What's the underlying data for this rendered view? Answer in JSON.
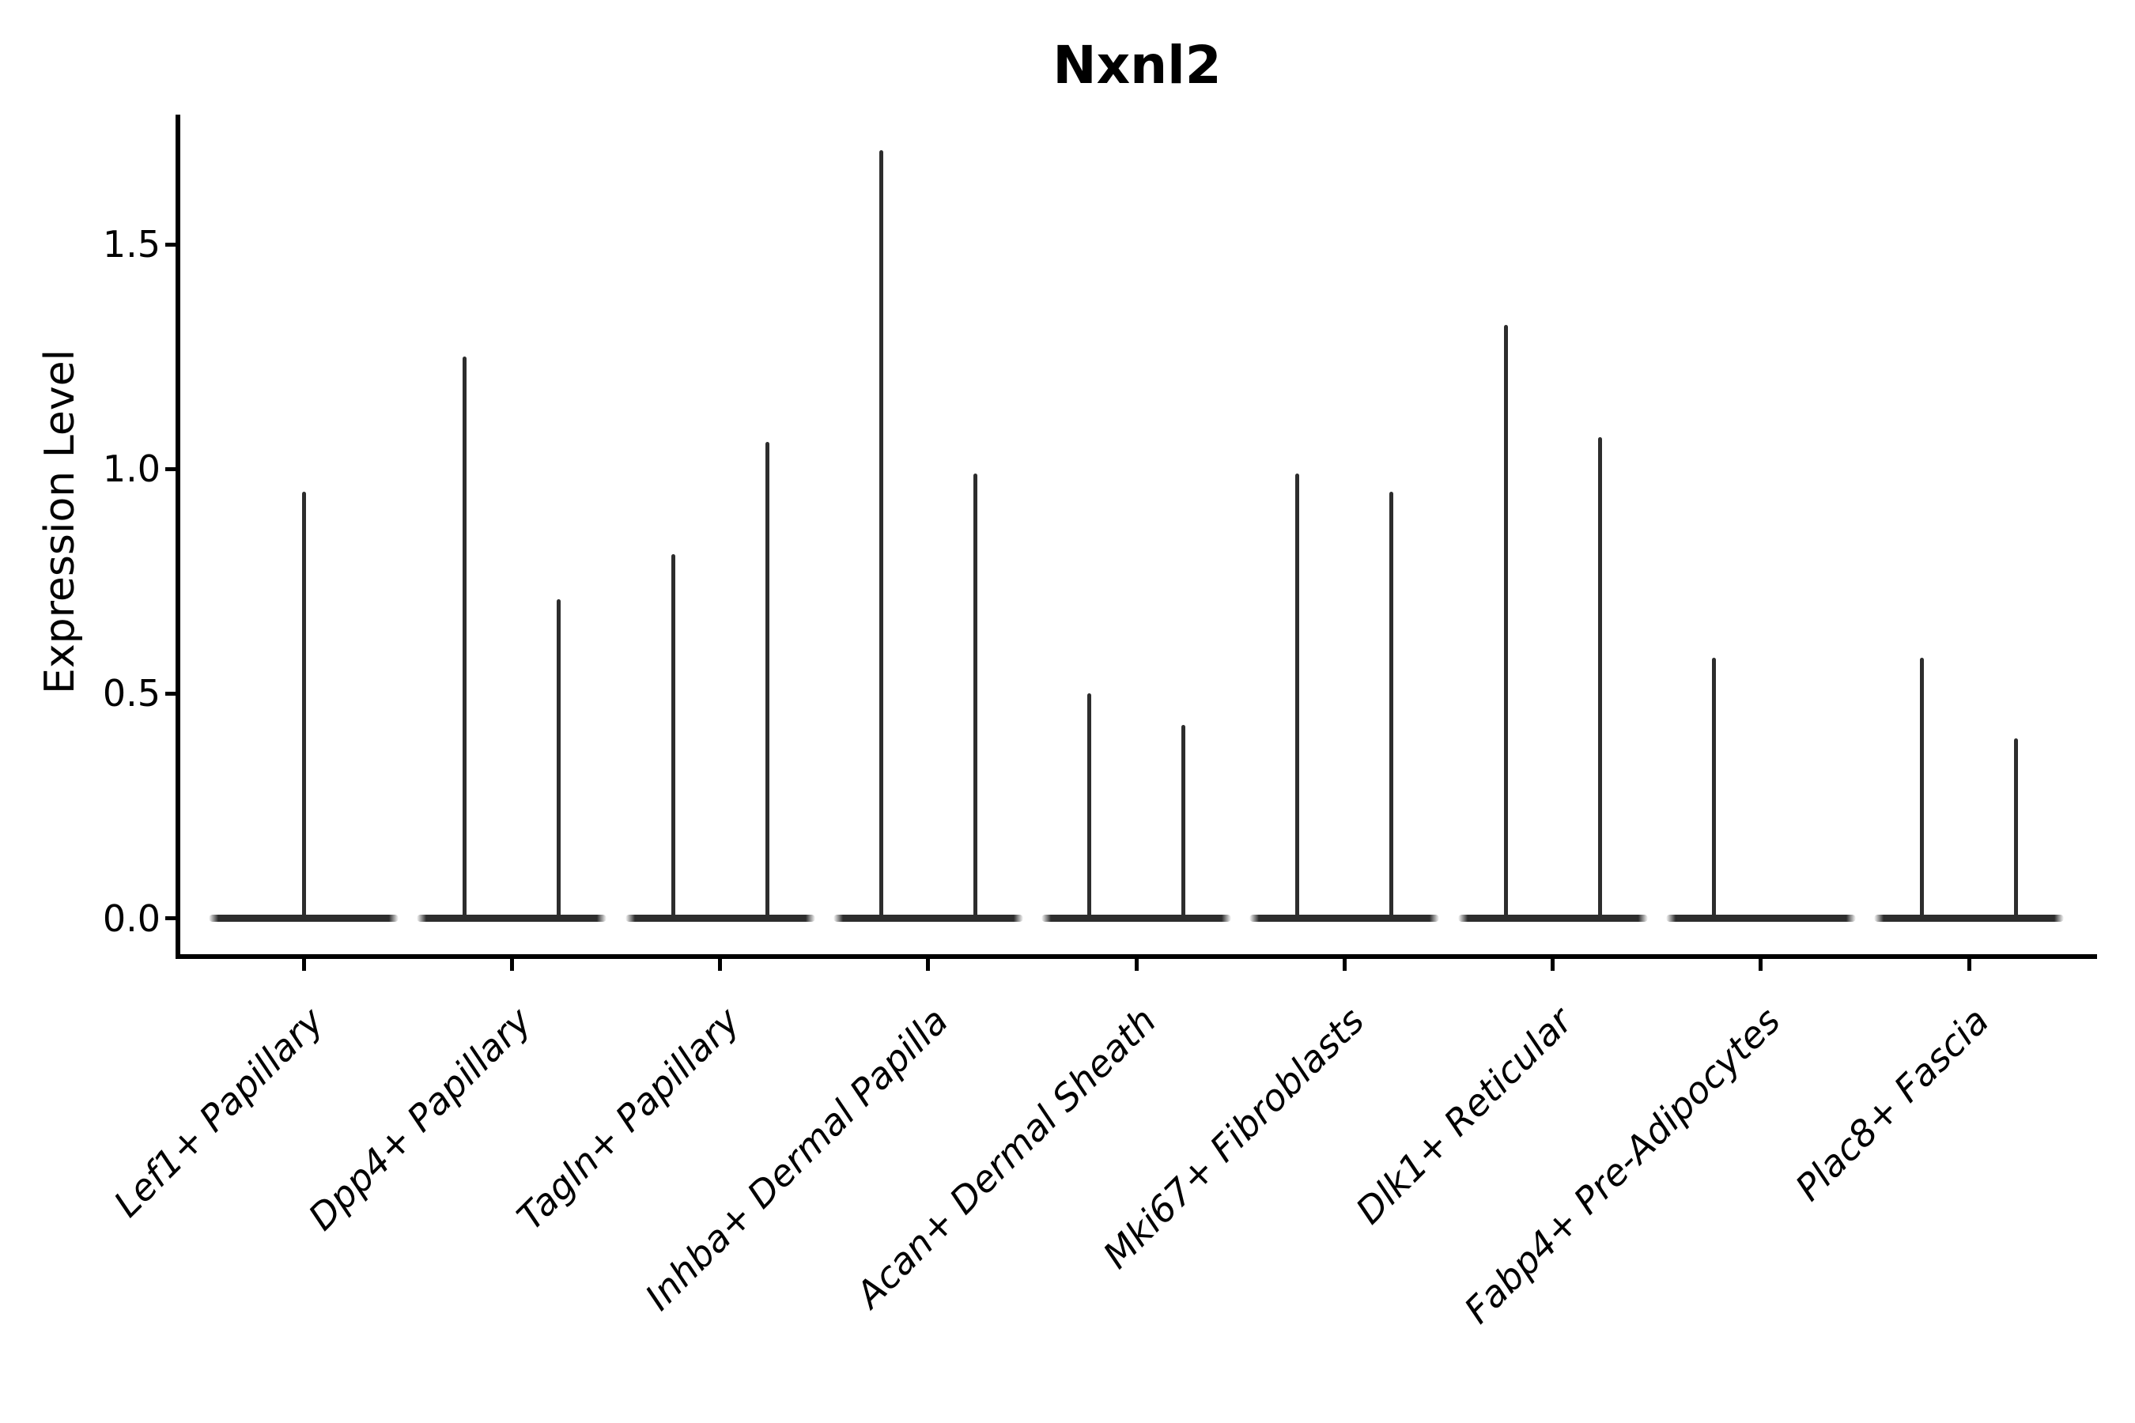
{
  "figure": {
    "title": "Nxnl2",
    "y_axis": {
      "label": "Expression Level",
      "tick_labels": [
        "0.0",
        "0.5",
        "1.0",
        "1.5"
      ]
    },
    "x_axis": {
      "label": "",
      "tick_labels": [
        "Lef1+ Papillary",
        "Dpp4+ Papillary",
        "Tagln+ Papillary",
        "Inhba+ Dermal Papilla",
        "Acan+ Dermal Sheath",
        "Mki67+ Fibroblasts",
        "Dlk1+ Reticular",
        "Fabp4+ Pre-Adipocytes",
        "Plac8+ Fascia"
      ]
    }
  },
  "chart_data": {
    "type": "violin",
    "title": "Nxnl2",
    "xlabel": "",
    "ylabel": "Expression Level",
    "ylim": [
      -0.08,
      1.79
    ],
    "yticks": [
      0.0,
      0.5,
      1.0,
      1.5
    ],
    "ytick_labels": [
      "0.0",
      "0.5",
      "1.0",
      "1.5"
    ],
    "grid": false,
    "legend": "none",
    "description": "Violin plot of Nxnl2 expression; expression is concentrated at 0 in every cluster so each violin collapses to a horizontal bar at 0 with a thin central spike reaching the cluster maximum. Most categories contain two side-by-side (dodged) violins.",
    "categories": [
      "Lef1+ Papillary",
      "Dpp4+ Papillary",
      "Tagln+ Papillary",
      "Inhba+ Dermal Papilla",
      "Acan+ Dermal Sheath",
      "Mki67+ Fibroblasts",
      "Dlk1+ Reticular",
      "Fabp4+ Pre-Adipocytes",
      "Plac8+ Fascia"
    ],
    "violins": [
      {
        "category": "Lef1+ Papillary",
        "spikes": [
          {
            "position": "center",
            "max": 0.95
          }
        ]
      },
      {
        "category": "Dpp4+ Papillary",
        "spikes": [
          {
            "position": "left",
            "max": 1.25
          },
          {
            "position": "right",
            "max": 0.71
          }
        ]
      },
      {
        "category": "Tagln+ Papillary",
        "spikes": [
          {
            "position": "left",
            "max": 0.81
          },
          {
            "position": "right",
            "max": 1.06
          }
        ]
      },
      {
        "category": "Inhba+ Dermal Papilla",
        "spikes": [
          {
            "position": "left",
            "max": 1.71
          },
          {
            "position": "right",
            "max": 0.99
          }
        ]
      },
      {
        "category": "Acan+ Dermal Sheath",
        "spikes": [
          {
            "position": "left",
            "max": 0.5
          },
          {
            "position": "right",
            "max": 0.43
          }
        ]
      },
      {
        "category": "Mki67+ Fibroblasts",
        "spikes": [
          {
            "position": "left",
            "max": 0.99
          },
          {
            "position": "right",
            "max": 0.95
          }
        ]
      },
      {
        "category": "Dlk1+ Reticular",
        "spikes": [
          {
            "position": "left",
            "max": 1.32
          },
          {
            "position": "right",
            "max": 1.07
          }
        ]
      },
      {
        "category": "Fabp4+ Pre-Adipocytes",
        "spikes": [
          {
            "position": "left",
            "max": 0.58
          }
        ]
      },
      {
        "category": "Plac8+ Fascia",
        "spikes": [
          {
            "position": "left",
            "max": 0.58
          },
          {
            "position": "right",
            "max": 0.4
          }
        ]
      }
    ],
    "style": {
      "violin_color": "#2d2d2d",
      "axis_color": "#000000",
      "background": "#ffffff"
    }
  }
}
